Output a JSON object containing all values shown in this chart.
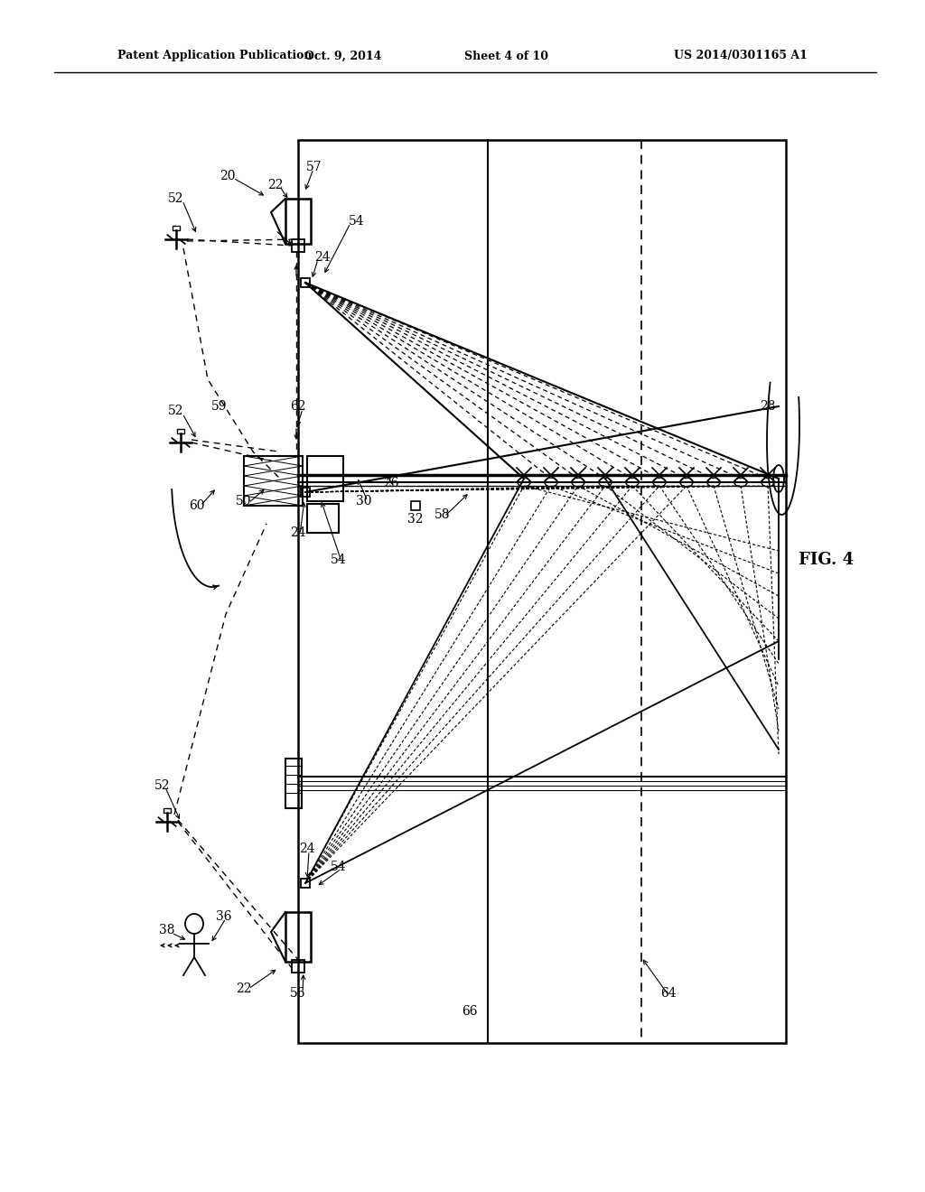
{
  "bg_color": "#ffffff",
  "line_color": "#000000",
  "header_text": "Patent Application Publication",
  "header_date": "Oct. 9, 2014",
  "header_sheet": "Sheet 4 of 10",
  "header_patent": "US 2014/0301165 A1",
  "fig_label": "FIG. 4",
  "title_fontsize": 9,
  "label_fontsize": 9
}
